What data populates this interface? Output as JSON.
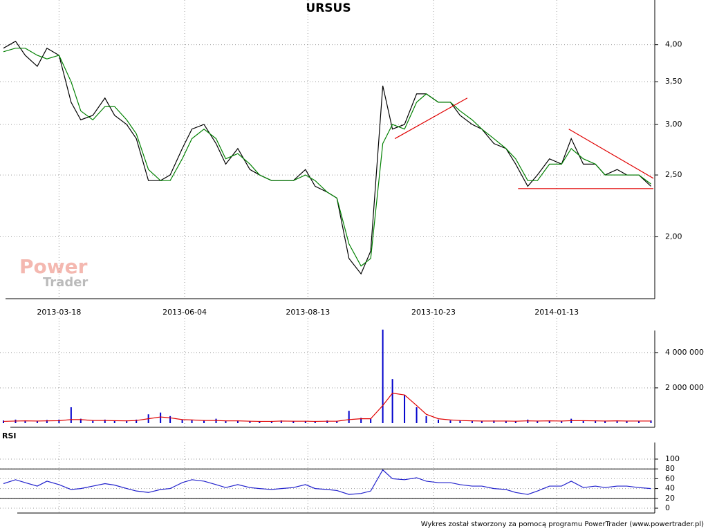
{
  "chart_data": [
    {
      "type": "line",
      "title": "URSUS",
      "log_scale": true,
      "grid": true,
      "color": "#000000",
      "x": [
        0,
        5,
        9,
        14,
        18,
        23,
        28,
        32,
        37,
        42,
        46,
        51,
        55,
        60,
        65,
        69,
        74,
        78,
        83,
        88,
        92,
        97,
        102,
        106,
        111,
        115,
        120,
        125,
        129,
        134,
        138,
        143,
        148,
        152,
        157,
        161,
        166,
        171,
        175,
        180,
        185,
        189,
        194,
        198,
        203,
        208,
        212,
        217,
        221,
        226,
        231,
        235,
        240,
        245,
        249,
        254,
        258,
        263,
        268
      ],
      "values": [
        3.95,
        4.05,
        3.85,
        3.7,
        3.95,
        3.85,
        3.25,
        3.05,
        3.1,
        3.3,
        3.1,
        3.0,
        2.85,
        2.45,
        2.45,
        2.5,
        2.75,
        2.95,
        3.0,
        2.8,
        2.6,
        2.75,
        2.55,
        2.5,
        2.45,
        2.45,
        2.45,
        2.55,
        2.4,
        2.35,
        2.3,
        1.85,
        1.75,
        1.9,
        3.45,
        2.95,
        3.0,
        3.35,
        3.35,
        3.25,
        3.25,
        3.1,
        3.0,
        2.95,
        2.8,
        2.75,
        2.6,
        2.4,
        2.5,
        2.65,
        2.6,
        2.85,
        2.6,
        2.6,
        2.5,
        2.55,
        2.5,
        2.5,
        2.4
      ],
      "moving_average": {
        "color": "#008000",
        "values": [
          3.9,
          3.95,
          3.95,
          3.85,
          3.8,
          3.85,
          3.5,
          3.15,
          3.05,
          3.2,
          3.2,
          3.05,
          2.9,
          2.55,
          2.45,
          2.45,
          2.65,
          2.85,
          2.95,
          2.85,
          2.65,
          2.7,
          2.6,
          2.5,
          2.45,
          2.45,
          2.45,
          2.5,
          2.45,
          2.35,
          2.3,
          1.95,
          1.8,
          1.85,
          2.8,
          3.0,
          2.95,
          3.25,
          3.35,
          3.25,
          3.25,
          3.15,
          3.05,
          2.95,
          2.85,
          2.75,
          2.65,
          2.45,
          2.45,
          2.6,
          2.6,
          2.75,
          2.65,
          2.6,
          2.5,
          2.5,
          2.5,
          2.5,
          2.42
        ]
      },
      "trendlines": {
        "color": "#e00000",
        "lines": [
          {
            "x": [
              162,
              192
            ],
            "values": [
              2.85,
              3.3
            ]
          },
          {
            "x": [
              234,
              269
            ],
            "values": [
              2.95,
              2.47
            ]
          },
          {
            "x": [
              213,
              269
            ],
            "values": [
              2.38,
              2.38
            ]
          }
        ]
      },
      "xlim": [
        0,
        269
      ],
      "ylim": [
        1.6,
        4.7
      ],
      "xticks": [
        {
          "value": 23,
          "label": "2013-03-18"
        },
        {
          "value": 75,
          "label": "2013-06-04"
        },
        {
          "value": 126,
          "label": "2013-08-13"
        },
        {
          "value": 178,
          "label": "2013-10-23"
        },
        {
          "value": 229,
          "label": "2014-01-13"
        }
      ],
      "yticks": [
        {
          "value": 2,
          "label": "2,00"
        },
        {
          "value": 2.5,
          "label": "2,50"
        },
        {
          "value": 3,
          "label": "3,00"
        },
        {
          "value": 3.5,
          "label": "3,50"
        },
        {
          "value": 4,
          "label": "4,00"
        }
      ]
    },
    {
      "type": "bar",
      "color": "#0000cc",
      "grid": true,
      "values": [
        150000,
        200000,
        150000,
        120000,
        180000,
        200000,
        900000,
        250000,
        150000,
        200000,
        120000,
        150000,
        200000,
        500000,
        600000,
        400000,
        200000,
        180000,
        150000,
        250000,
        120000,
        150000,
        100000,
        100000,
        120000,
        150000,
        100000,
        120000,
        100000,
        150000,
        100000,
        700000,
        300000,
        250000,
        5300000,
        2500000,
        1600000,
        900000,
        400000,
        200000,
        150000,
        150000,
        120000,
        100000,
        150000,
        120000,
        100000,
        200000,
        120000,
        150000,
        120000,
        250000,
        150000,
        150000,
        120000,
        150000,
        120000,
        120000,
        150000
      ],
      "moving_average": {
        "color": "#e00000",
        "values": [
          100000,
          120000,
          130000,
          120000,
          130000,
          140000,
          200000,
          200000,
          150000,
          150000,
          140000,
          130000,
          150000,
          250000,
          350000,
          300000,
          200000,
          180000,
          150000,
          150000,
          130000,
          130000,
          110000,
          100000,
          100000,
          120000,
          110000,
          110000,
          100000,
          110000,
          110000,
          200000,
          250000,
          250000,
          1000000,
          1700000,
          1600000,
          1000000,
          500000,
          250000,
          180000,
          150000,
          130000,
          120000,
          120000,
          120000,
          110000,
          130000,
          120000,
          130000,
          120000,
          140000,
          140000,
          130000,
          120000,
          130000,
          120000,
          120000,
          120000
        ]
      },
      "ylim": [
        0,
        5250000
      ],
      "yticks": [
        {
          "value": 2000000,
          "label": "2 000 000"
        },
        {
          "value": 4000000,
          "label": "4 000 000"
        }
      ]
    },
    {
      "type": "line",
      "title": "RSI",
      "color": "#2020cc",
      "grid": true,
      "values": [
        50,
        58,
        52,
        45,
        55,
        48,
        38,
        40,
        45,
        50,
        47,
        40,
        35,
        32,
        38,
        40,
        52,
        58,
        55,
        48,
        42,
        48,
        42,
        40,
        38,
        40,
        42,
        48,
        40,
        38,
        36,
        28,
        30,
        35,
        78,
        60,
        58,
        62,
        55,
        52,
        52,
        48,
        45,
        45,
        40,
        38,
        32,
        28,
        35,
        45,
        45,
        55,
        42,
        45,
        42,
        45,
        45,
        42,
        40
      ],
      "levels": [
        20,
        80
      ],
      "ylim": [
        0,
        100
      ],
      "yticks": [
        0,
        20,
        40,
        60,
        80,
        100
      ]
    }
  ],
  "watermark": {
    "line1": "Power",
    "line2": "Trader"
  },
  "footer": "Wykres został stworzony za pomocą programu PowerTrader (www.powertrader.pl)"
}
